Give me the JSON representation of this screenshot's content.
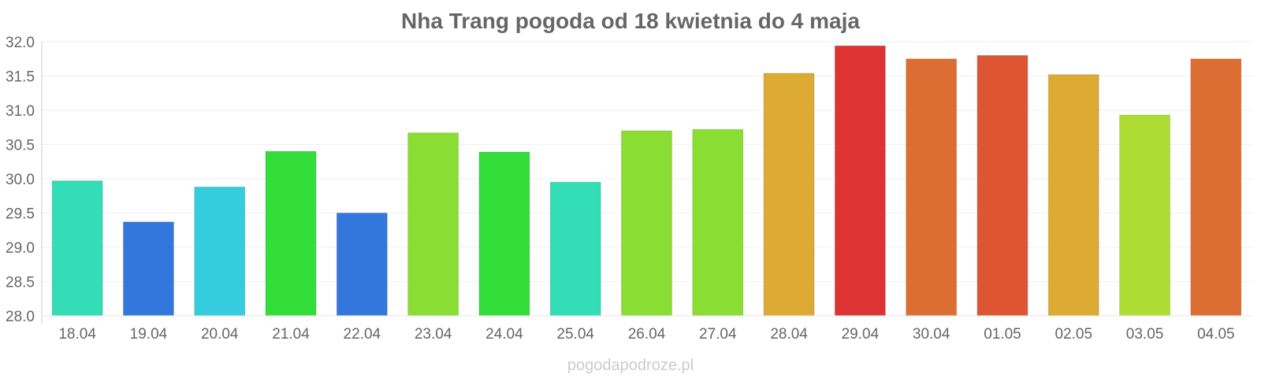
{
  "chart_data": {
    "type": "bar",
    "title": "Nha Trang pogoda od 18 kwietnia do 4 maja",
    "xlabel": "",
    "ylabel": "",
    "ylim": [
      28.0,
      32.0
    ],
    "yticks": [
      "28.0",
      "28.5",
      "29.0",
      "29.5",
      "30.0",
      "30.5",
      "31.0",
      "31.5",
      "32.0"
    ],
    "grid": true,
    "legend": "none",
    "categories": [
      "18.04",
      "19.04",
      "20.04",
      "21.04",
      "22.04",
      "23.04",
      "24.04",
      "25.04",
      "26.04",
      "27.04",
      "28.04",
      "29.04",
      "30.04",
      "01.05",
      "02.05",
      "03.05",
      "04.05"
    ],
    "values": [
      29.97,
      29.37,
      29.88,
      30.4,
      29.5,
      30.67,
      30.39,
      29.95,
      30.7,
      30.72,
      31.54,
      31.94,
      31.75,
      31.8,
      31.52,
      30.93,
      31.75
    ],
    "colors": [
      "#33ddb5",
      "#3377dd",
      "#33cddd",
      "#33dd3a",
      "#3377dd",
      "#8ade33",
      "#33dd3a",
      "#33ddb5",
      "#8ade33",
      "#8ade33",
      "#ddab33",
      "#dd3333",
      "#dd6e33",
      "#dd5533",
      "#ddab33",
      "#addd33",
      "#dd6e33"
    ]
  },
  "watermark": "pogodapodroze.pl"
}
